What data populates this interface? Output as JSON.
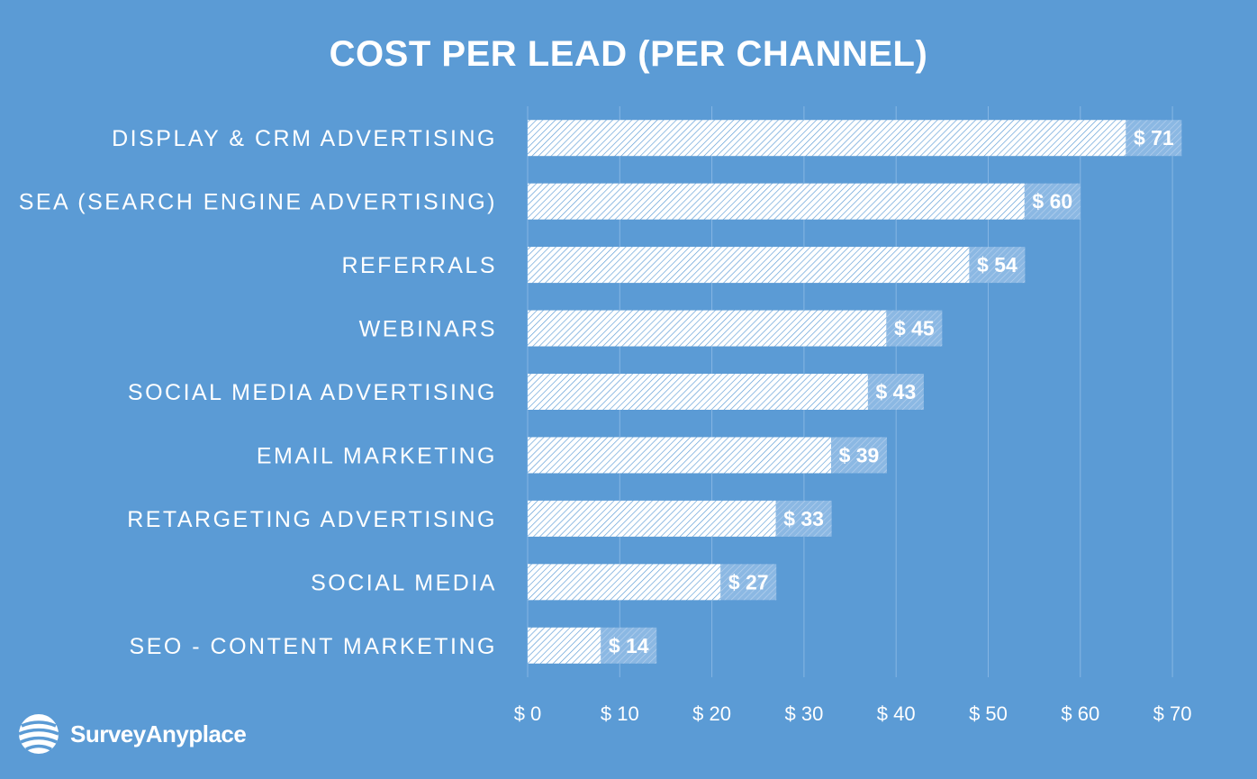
{
  "chart_data": {
    "type": "bar",
    "orientation": "horizontal",
    "title": "COST PER LEAD (PER CHANNEL)",
    "categories": [
      "DISPLAY & CRM ADVERTISING",
      "SEA (SEARCH ENGINE ADVERTISING)",
      "REFERRALS",
      "WEBINARS",
      "SOCIAL MEDIA ADVERTISING",
      "EMAIL MARKETING",
      "RETARGETING ADVERTISING",
      "SOCIAL MEDIA",
      "SEO - CONTENT MARKETING"
    ],
    "values": [
      71,
      60,
      54,
      45,
      43,
      39,
      33,
      27,
      14
    ],
    "data_labels": [
      "$ 71",
      "$ 60",
      "$ 54",
      "$ 45",
      "$ 43",
      "$ 39",
      "$ 33",
      "$ 27",
      "$ 14"
    ],
    "x_ticks": [
      0,
      10,
      20,
      30,
      40,
      50,
      60,
      70
    ],
    "x_tick_labels": [
      "$ 0",
      "$ 10",
      "$ 20",
      "$ 30",
      "$ 40",
      "$ 50",
      "$ 60",
      "$ 70"
    ],
    "xlim": [
      0,
      70
    ],
    "grid": true,
    "colors": {
      "background": "#5b9bd5",
      "bar": "#ffffff",
      "text": "#ffffff"
    }
  },
  "brand": {
    "name": "SurveyAnyplace",
    "icon": "globe-icon"
  }
}
